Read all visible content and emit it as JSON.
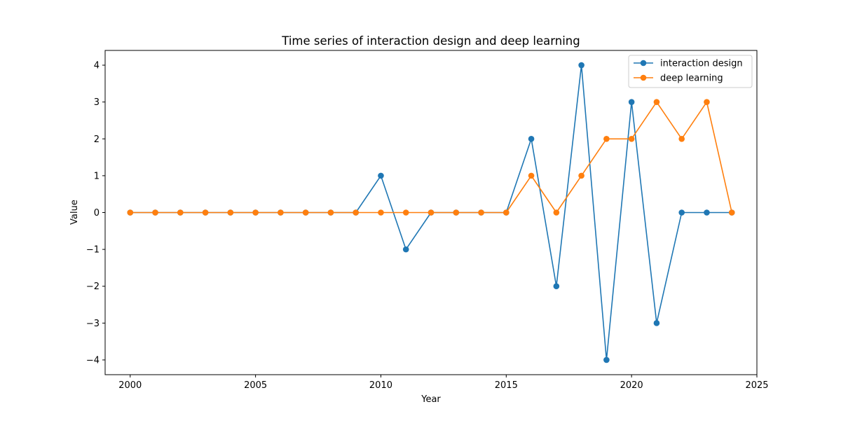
{
  "chart_data": {
    "type": "line",
    "title": "Time series of interaction design and deep learning",
    "xlabel": "Year",
    "ylabel": "Value",
    "xlim": [
      1999,
      2025
    ],
    "ylim": [
      -4.4,
      4.4
    ],
    "xticks": [
      2000,
      2005,
      2010,
      2015,
      2020,
      2025
    ],
    "yticks": [
      -4,
      -3,
      -2,
      -1,
      0,
      1,
      2,
      3,
      4
    ],
    "ytick_labels": [
      "−4",
      "−3",
      "−2",
      "−1",
      "0",
      "1",
      "2",
      "3",
      "4"
    ],
    "grid": false,
    "legend_position": "top-right",
    "x": [
      2000,
      2001,
      2002,
      2003,
      2004,
      2005,
      2006,
      2007,
      2008,
      2009,
      2010,
      2011,
      2012,
      2013,
      2014,
      2015,
      2016,
      2017,
      2018,
      2019,
      2020,
      2021,
      2022,
      2023,
      2024
    ],
    "series": [
      {
        "name": "interaction design",
        "color": "#1f77b4",
        "values": [
          0,
          0,
          0,
          0,
          0,
          0,
          0,
          0,
          0,
          0,
          1,
          -1,
          0,
          0,
          0,
          0,
          2,
          -2,
          4,
          -4,
          3,
          -3,
          0,
          0,
          0
        ]
      },
      {
        "name": "deep learning",
        "color": "#ff7f0e",
        "values": [
          0,
          0,
          0,
          0,
          0,
          0,
          0,
          0,
          0,
          0,
          0,
          0,
          0,
          0,
          0,
          0,
          1,
          0,
          1,
          2,
          2,
          3,
          2,
          3,
          0
        ]
      }
    ]
  }
}
